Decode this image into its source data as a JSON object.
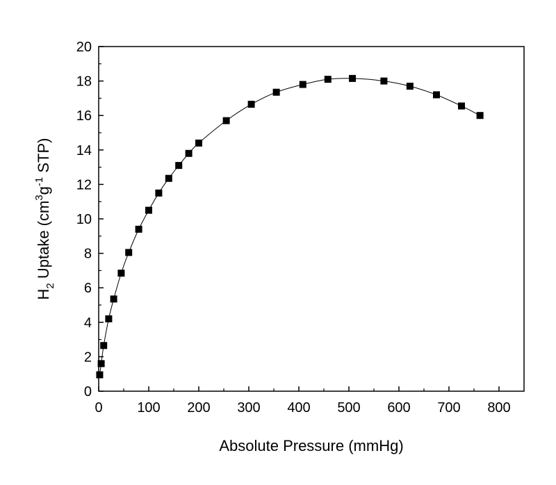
{
  "chart_data": {
    "type": "scatter",
    "title": "",
    "xlabel": "Absolute Pressure (mmHg)",
    "ylabel": {
      "prefix": "H",
      "sub": "2",
      "mid": " Uptake (cm",
      "sup1": "3",
      "g": "g",
      "sup2": "-1",
      "suffix": " STP)"
    },
    "xlim": [
      0,
      850
    ],
    "ylim": [
      0,
      20
    ],
    "xticks": [
      0,
      100,
      200,
      300,
      400,
      500,
      600,
      700,
      800
    ],
    "yticks": [
      0,
      2,
      4,
      6,
      8,
      10,
      12,
      14,
      16,
      18,
      20
    ],
    "grid": false,
    "marker": "square",
    "line": "smooth",
    "color": "#000000",
    "series": [
      {
        "x": [
          2,
          5,
          10,
          20,
          30,
          45,
          60,
          80,
          100,
          120,
          140,
          160,
          180,
          200,
          255,
          305,
          355,
          408,
          458,
          507,
          570,
          622,
          675,
          725,
          762
        ],
        "y": [
          0.95,
          1.6,
          2.65,
          4.2,
          5.35,
          6.85,
          8.05,
          9.4,
          10.5,
          11.5,
          12.35,
          13.1,
          13.8,
          14.4,
          15.7,
          16.65,
          17.35,
          17.8,
          18.1,
          18.15,
          18.0,
          17.7,
          17.2,
          16.55,
          16.0
        ]
      }
    ]
  }
}
